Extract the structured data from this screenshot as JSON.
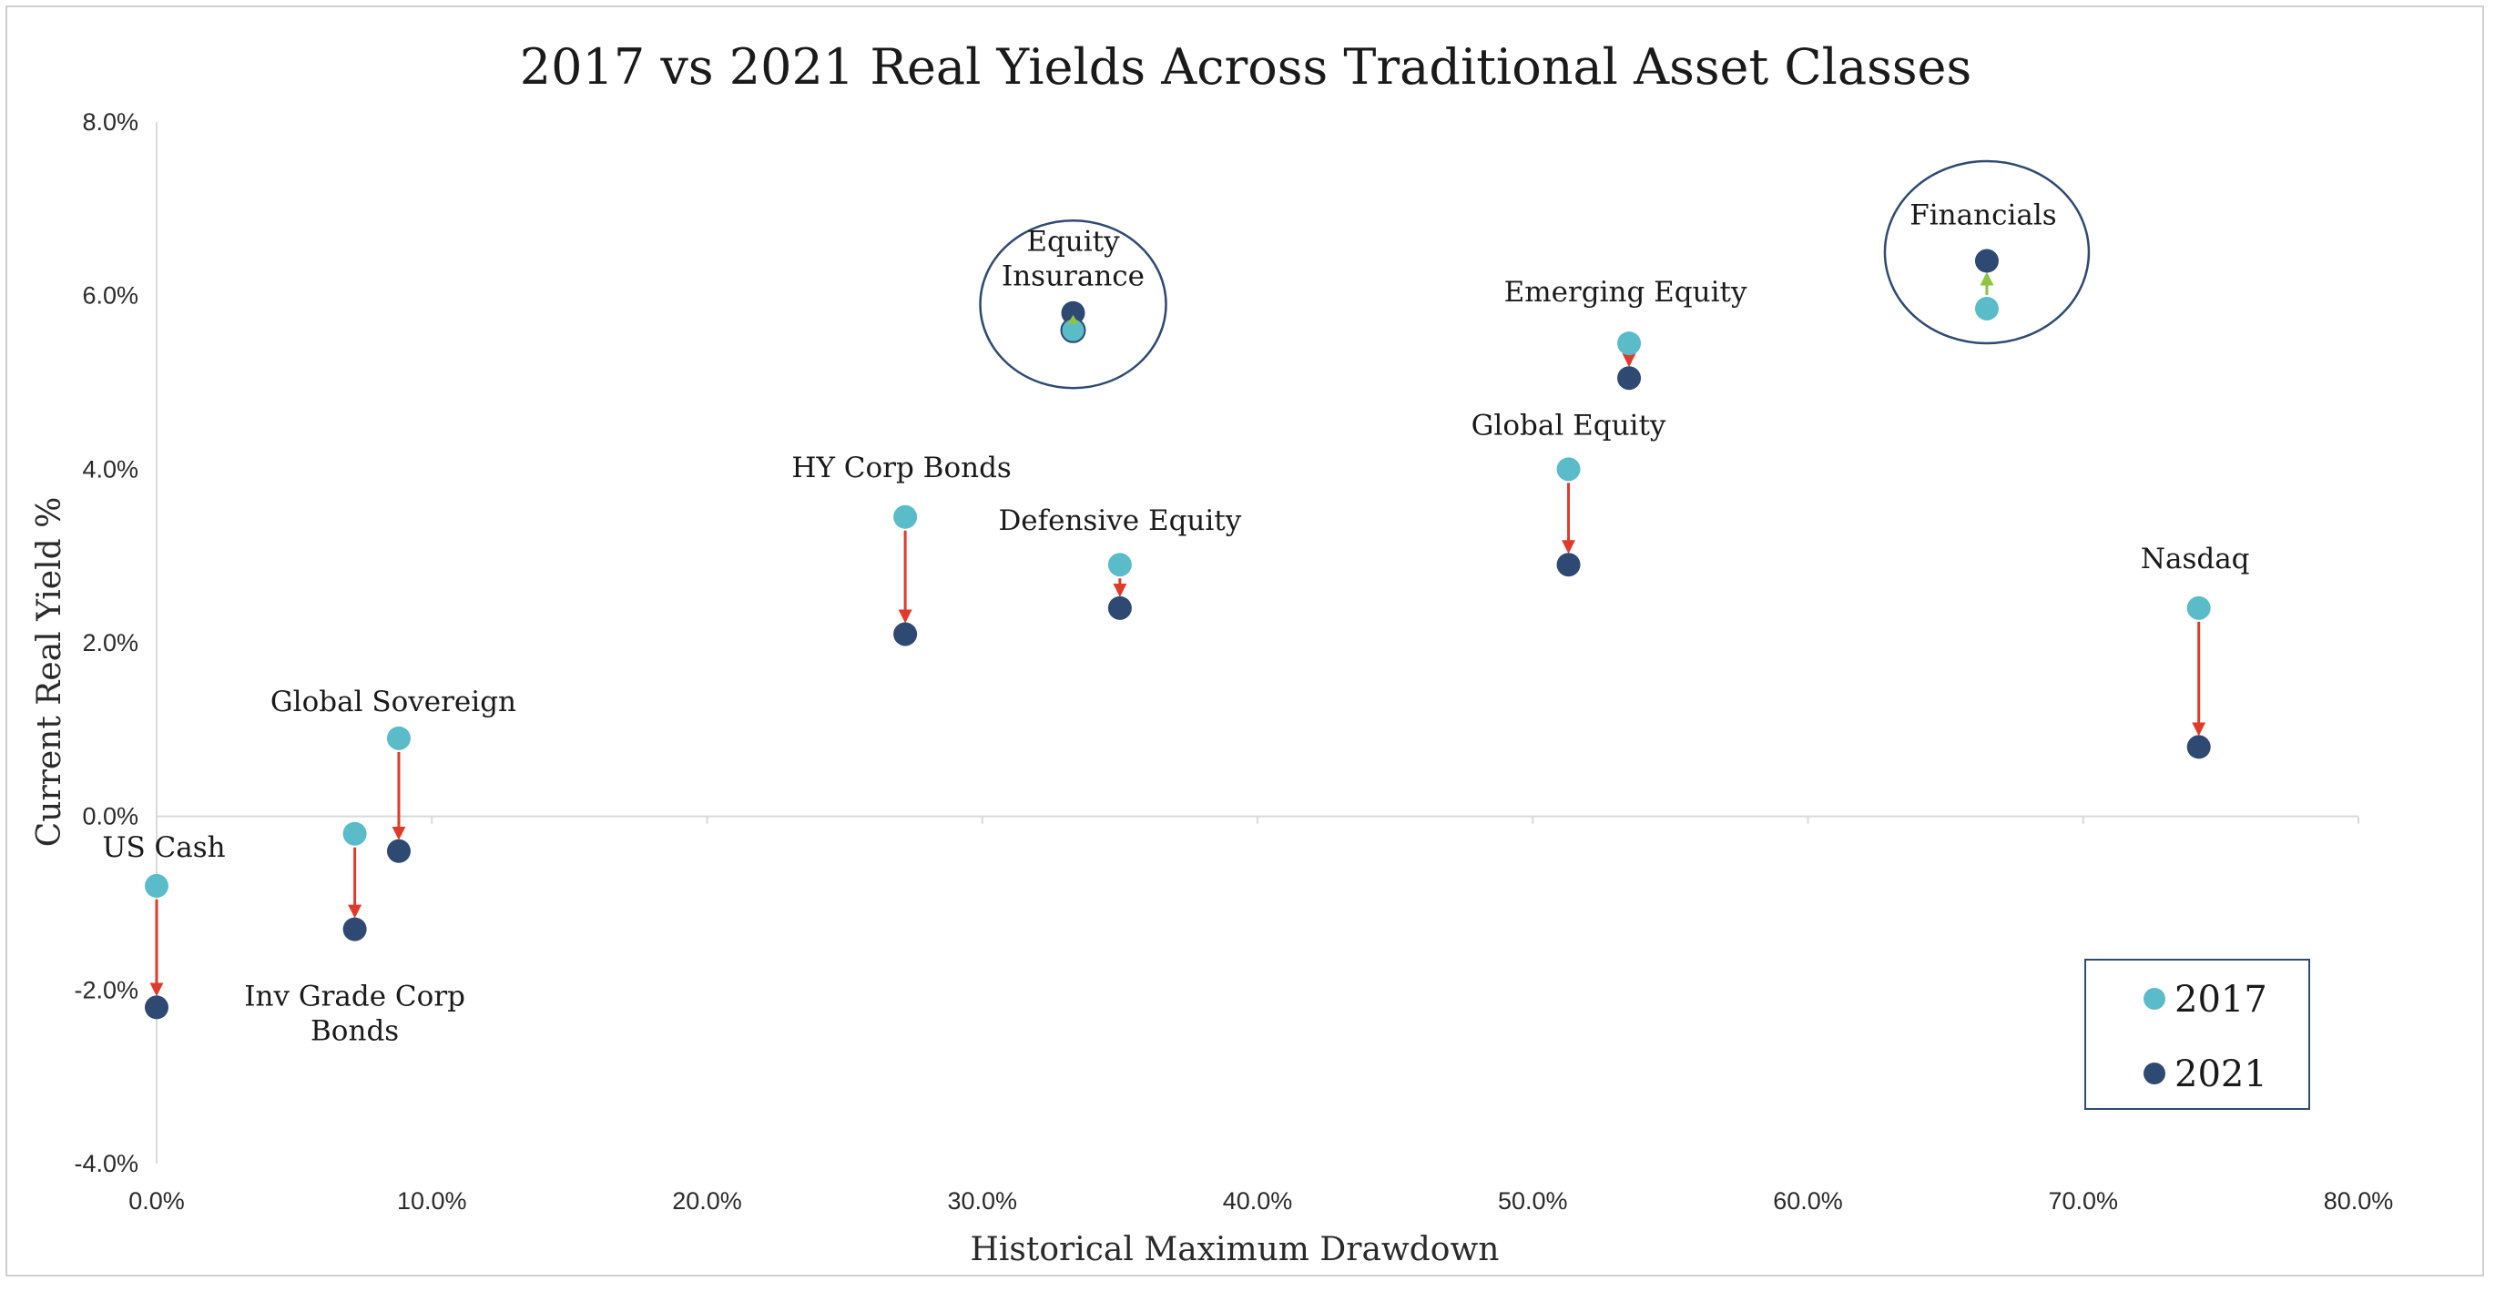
{
  "chart_data": {
    "type": "scatter",
    "title": "2017 vs 2021 Real Yields Across Traditional Asset Classes",
    "xlabel": "Historical Maximum Drawdown",
    "ylabel": "Current Real Yield %",
    "xlim": [
      0,
      80
    ],
    "ylim": [
      -4,
      8
    ],
    "x_ticks": [
      "0.0%",
      "10.0%",
      "20.0%",
      "30.0%",
      "40.0%",
      "50.0%",
      "60.0%",
      "70.0%",
      "80.0%"
    ],
    "y_ticks": [
      "-4.0%",
      "-2.0%",
      "0.0%",
      "2.0%",
      "4.0%",
      "6.0%",
      "8.0%"
    ],
    "legend": [
      {
        "label": "2017",
        "color": "#5bbcc9"
      },
      {
        "label": "2021",
        "color": "#2f4a72"
      }
    ],
    "legend_position": "bottom-right",
    "arrow_colors": {
      "decline": "#e03a2a",
      "increase": "#8cc63f"
    },
    "points": [
      {
        "label": "US Cash",
        "x2017": 0.0,
        "y2017": -0.8,
        "x2021": 0.0,
        "y2021": -2.2,
        "label_pos": "above"
      },
      {
        "label": "Inv Grade Corp Bonds",
        "label_lines": [
          "Inv Grade Corp",
          "Bonds"
        ],
        "x2017": 7.2,
        "y2017": -0.2,
        "x2021": 7.2,
        "y2021": -1.3,
        "label_pos": "below"
      },
      {
        "label": "Global Sovereign",
        "x2017": 8.8,
        "y2017": 0.9,
        "x2021": 8.8,
        "y2021": -0.4,
        "label_pos": "above"
      },
      {
        "label": "HY Corp Bonds",
        "x2017": 27.2,
        "y2017": 3.45,
        "x2021": 27.2,
        "y2021": 2.1,
        "label_pos": "above"
      },
      {
        "label": "Defensive Equity",
        "x2017": 35.0,
        "y2017": 2.9,
        "x2021": 35.0,
        "y2021": 2.4,
        "label_pos": "above"
      },
      {
        "label": "Equity Insurance",
        "label_lines": [
          "Equity",
          "Insurance"
        ],
        "x2017": 33.3,
        "y2017": 5.6,
        "x2021": 33.3,
        "y2021": 5.8,
        "label_pos": "above",
        "circled": true
      },
      {
        "label": "Global Equity",
        "x2017": 51.3,
        "y2017": 4.0,
        "x2021": 51.3,
        "y2021": 2.9,
        "label_pos": "above"
      },
      {
        "label": "Emerging Equity",
        "x2017": 53.5,
        "y2017": 5.45,
        "x2021": 53.5,
        "y2021": 5.05,
        "label_pos": "above"
      },
      {
        "label": "Financials",
        "x2017": 66.5,
        "y2017": 5.85,
        "x2021": 66.5,
        "y2021": 6.4,
        "label_pos": "above",
        "circled": true
      },
      {
        "label": "Nasdaq",
        "x2017": 74.2,
        "y2017": 2.4,
        "x2021": 74.2,
        "y2021": 0.8,
        "label_pos": "above"
      }
    ]
  }
}
